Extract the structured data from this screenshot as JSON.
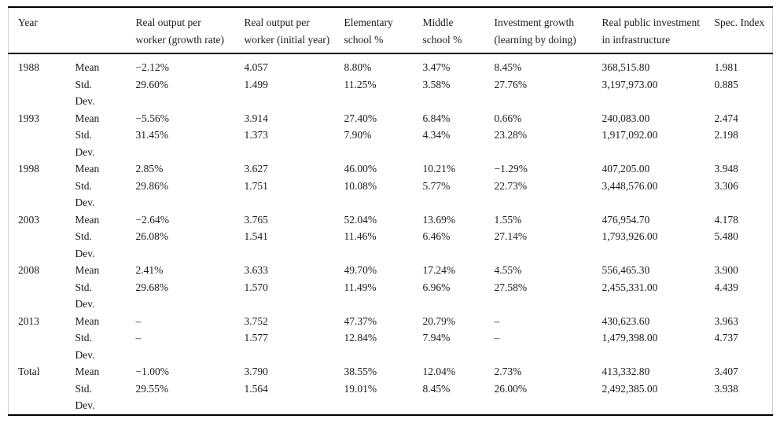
{
  "table": {
    "columns": [
      "Year",
      "",
      "Real output per worker (growth rate)",
      "Real output per worker (initial year)",
      "Elementary school %",
      "Middle school %",
      "Investment growth (learning by doing)",
      "Real public investment in infrastructure",
      "Spec. Index"
    ],
    "stat_labels": {
      "mean": "Mean",
      "std_line1": "Std.",
      "std_line2": "Dev."
    },
    "groups": [
      {
        "year": "1988",
        "mean": [
          "−2.12%",
          "4.057",
          "8.80%",
          "3.47%",
          "8.45%",
          "368,515.80",
          "1.981"
        ],
        "std": [
          "29.60%",
          "1.499",
          "11.25%",
          "3.58%",
          "27.76%",
          "3,197,973.00",
          "0.885"
        ]
      },
      {
        "year": "1993",
        "mean": [
          "−5.56%",
          "3.914",
          "27.40%",
          "6.84%",
          "0.66%",
          "240,083.00",
          "2.474"
        ],
        "std": [
          "31.45%",
          "1.373",
          "7.90%",
          "4.34%",
          "23.28%",
          "1,917,092.00",
          "2.198"
        ]
      },
      {
        "year": "1998",
        "mean": [
          "2.85%",
          "3.627",
          "46.00%",
          "10.21%",
          "−1.29%",
          "407,205.00",
          "3.948"
        ],
        "std": [
          "29.86%",
          "1.751",
          "10.08%",
          "5.77%",
          "22.73%",
          "3,448,576.00",
          "3.306"
        ]
      },
      {
        "year": "2003",
        "mean": [
          "−2.64%",
          "3.765",
          "52.04%",
          "13.69%",
          "1.55%",
          "476,954.70",
          "4.178"
        ],
        "std": [
          "26.08%",
          "1.541",
          "11.46%",
          "6.46%",
          "27.14%",
          "1,793,926.00",
          "5.480"
        ]
      },
      {
        "year": "2008",
        "mean": [
          "2.41%",
          "3.633",
          "49.70%",
          "17.24%",
          "4.55%",
          "556,465.30",
          "3.900"
        ],
        "std": [
          "29.68%",
          "1.570",
          "11.49%",
          "6.96%",
          "27.58%",
          "2,455,331.00",
          "4.439"
        ]
      },
      {
        "year": "2013",
        "mean": [
          "–",
          "3.752",
          "47.37%",
          "20.79%",
          "–",
          "430,623.60",
          "3.963"
        ],
        "std": [
          "–",
          "1.577",
          "12.84%",
          "7.94%",
          "–",
          "1,479,398.00",
          "4.737"
        ]
      },
      {
        "year": "Total",
        "mean": [
          "−1.00%",
          "3.790",
          "38.55%",
          "12.04%",
          "2.73%",
          "413,332.80",
          "3.407"
        ],
        "std": [
          "29.55%",
          "1.564",
          "19.01%",
          "8.45%",
          "26.00%",
          "2,492,385.00",
          "3.938"
        ]
      }
    ]
  }
}
